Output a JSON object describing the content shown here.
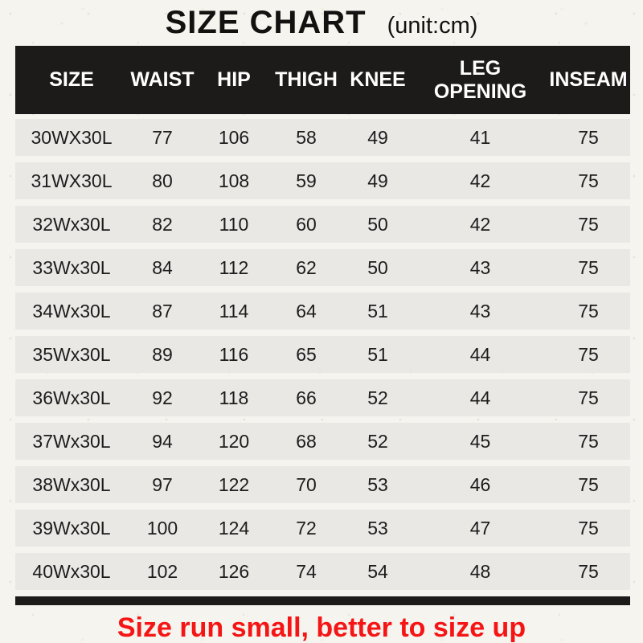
{
  "title": "SIZE CHART",
  "unit_label": "(unit:cm)",
  "footer_note": "Size run small, better to size up",
  "colors": {
    "header_bg": "#1d1b19",
    "header_text": "#ffffff",
    "row_bg": "#e9e8e5",
    "body_text": "#1c1c1c",
    "note_red": "#f51515",
    "paper_bg": "#f6f4ef"
  },
  "chart_data": {
    "type": "table",
    "columns": [
      "SIZE",
      "WAIST",
      "HIP",
      "THIGH",
      "KNEE",
      "LEG OPENING",
      "INSEAM"
    ],
    "rows": [
      [
        "30WX30L",
        77,
        106,
        58,
        49,
        41,
        75
      ],
      [
        "31WX30L",
        80,
        108,
        59,
        49,
        42,
        75
      ],
      [
        "32Wx30L",
        82,
        110,
        60,
        50,
        42,
        75
      ],
      [
        "33Wx30L",
        84,
        112,
        62,
        50,
        43,
        75
      ],
      [
        "34Wx30L",
        87,
        114,
        64,
        51,
        43,
        75
      ],
      [
        "35Wx30L",
        89,
        116,
        65,
        51,
        44,
        75
      ],
      [
        "36Wx30L",
        92,
        118,
        66,
        52,
        44,
        75
      ],
      [
        "37Wx30L",
        94,
        120,
        68,
        52,
        45,
        75
      ],
      [
        "38Wx30L",
        97,
        122,
        70,
        53,
        46,
        75
      ],
      [
        "39Wx30L",
        100,
        124,
        72,
        53,
        47,
        75
      ],
      [
        "40Wx30L",
        102,
        126,
        74,
        54,
        48,
        75
      ]
    ]
  }
}
